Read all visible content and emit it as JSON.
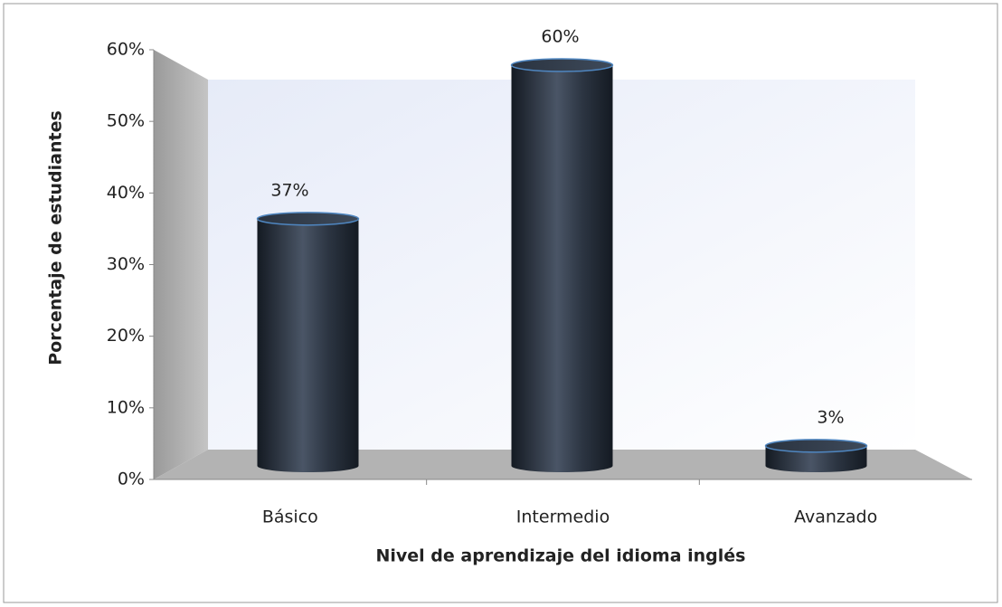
{
  "chart_data": {
    "type": "bar3d",
    "categories": [
      "Básico",
      "Intermedio",
      "Avanzado"
    ],
    "values": [
      37,
      60,
      3
    ],
    "value_labels": [
      "37%",
      "60%",
      "3%"
    ],
    "color": "#2a3340",
    "x_label": "Nivel de aprendizaje del idioma inglés",
    "y_label": "Porcentaje de estudiantes",
    "ylim": [
      0,
      60
    ],
    "yticks": [
      {
        "value": 0,
        "label": "0%"
      },
      {
        "value": 10,
        "label": "10%"
      },
      {
        "value": 20,
        "label": "20%"
      },
      {
        "value": 30,
        "label": "30%"
      },
      {
        "value": 40,
        "label": "40%"
      },
      {
        "value": 50,
        "label": "50%"
      },
      {
        "value": 60,
        "label": "60%"
      }
    ],
    "grid": false
  }
}
